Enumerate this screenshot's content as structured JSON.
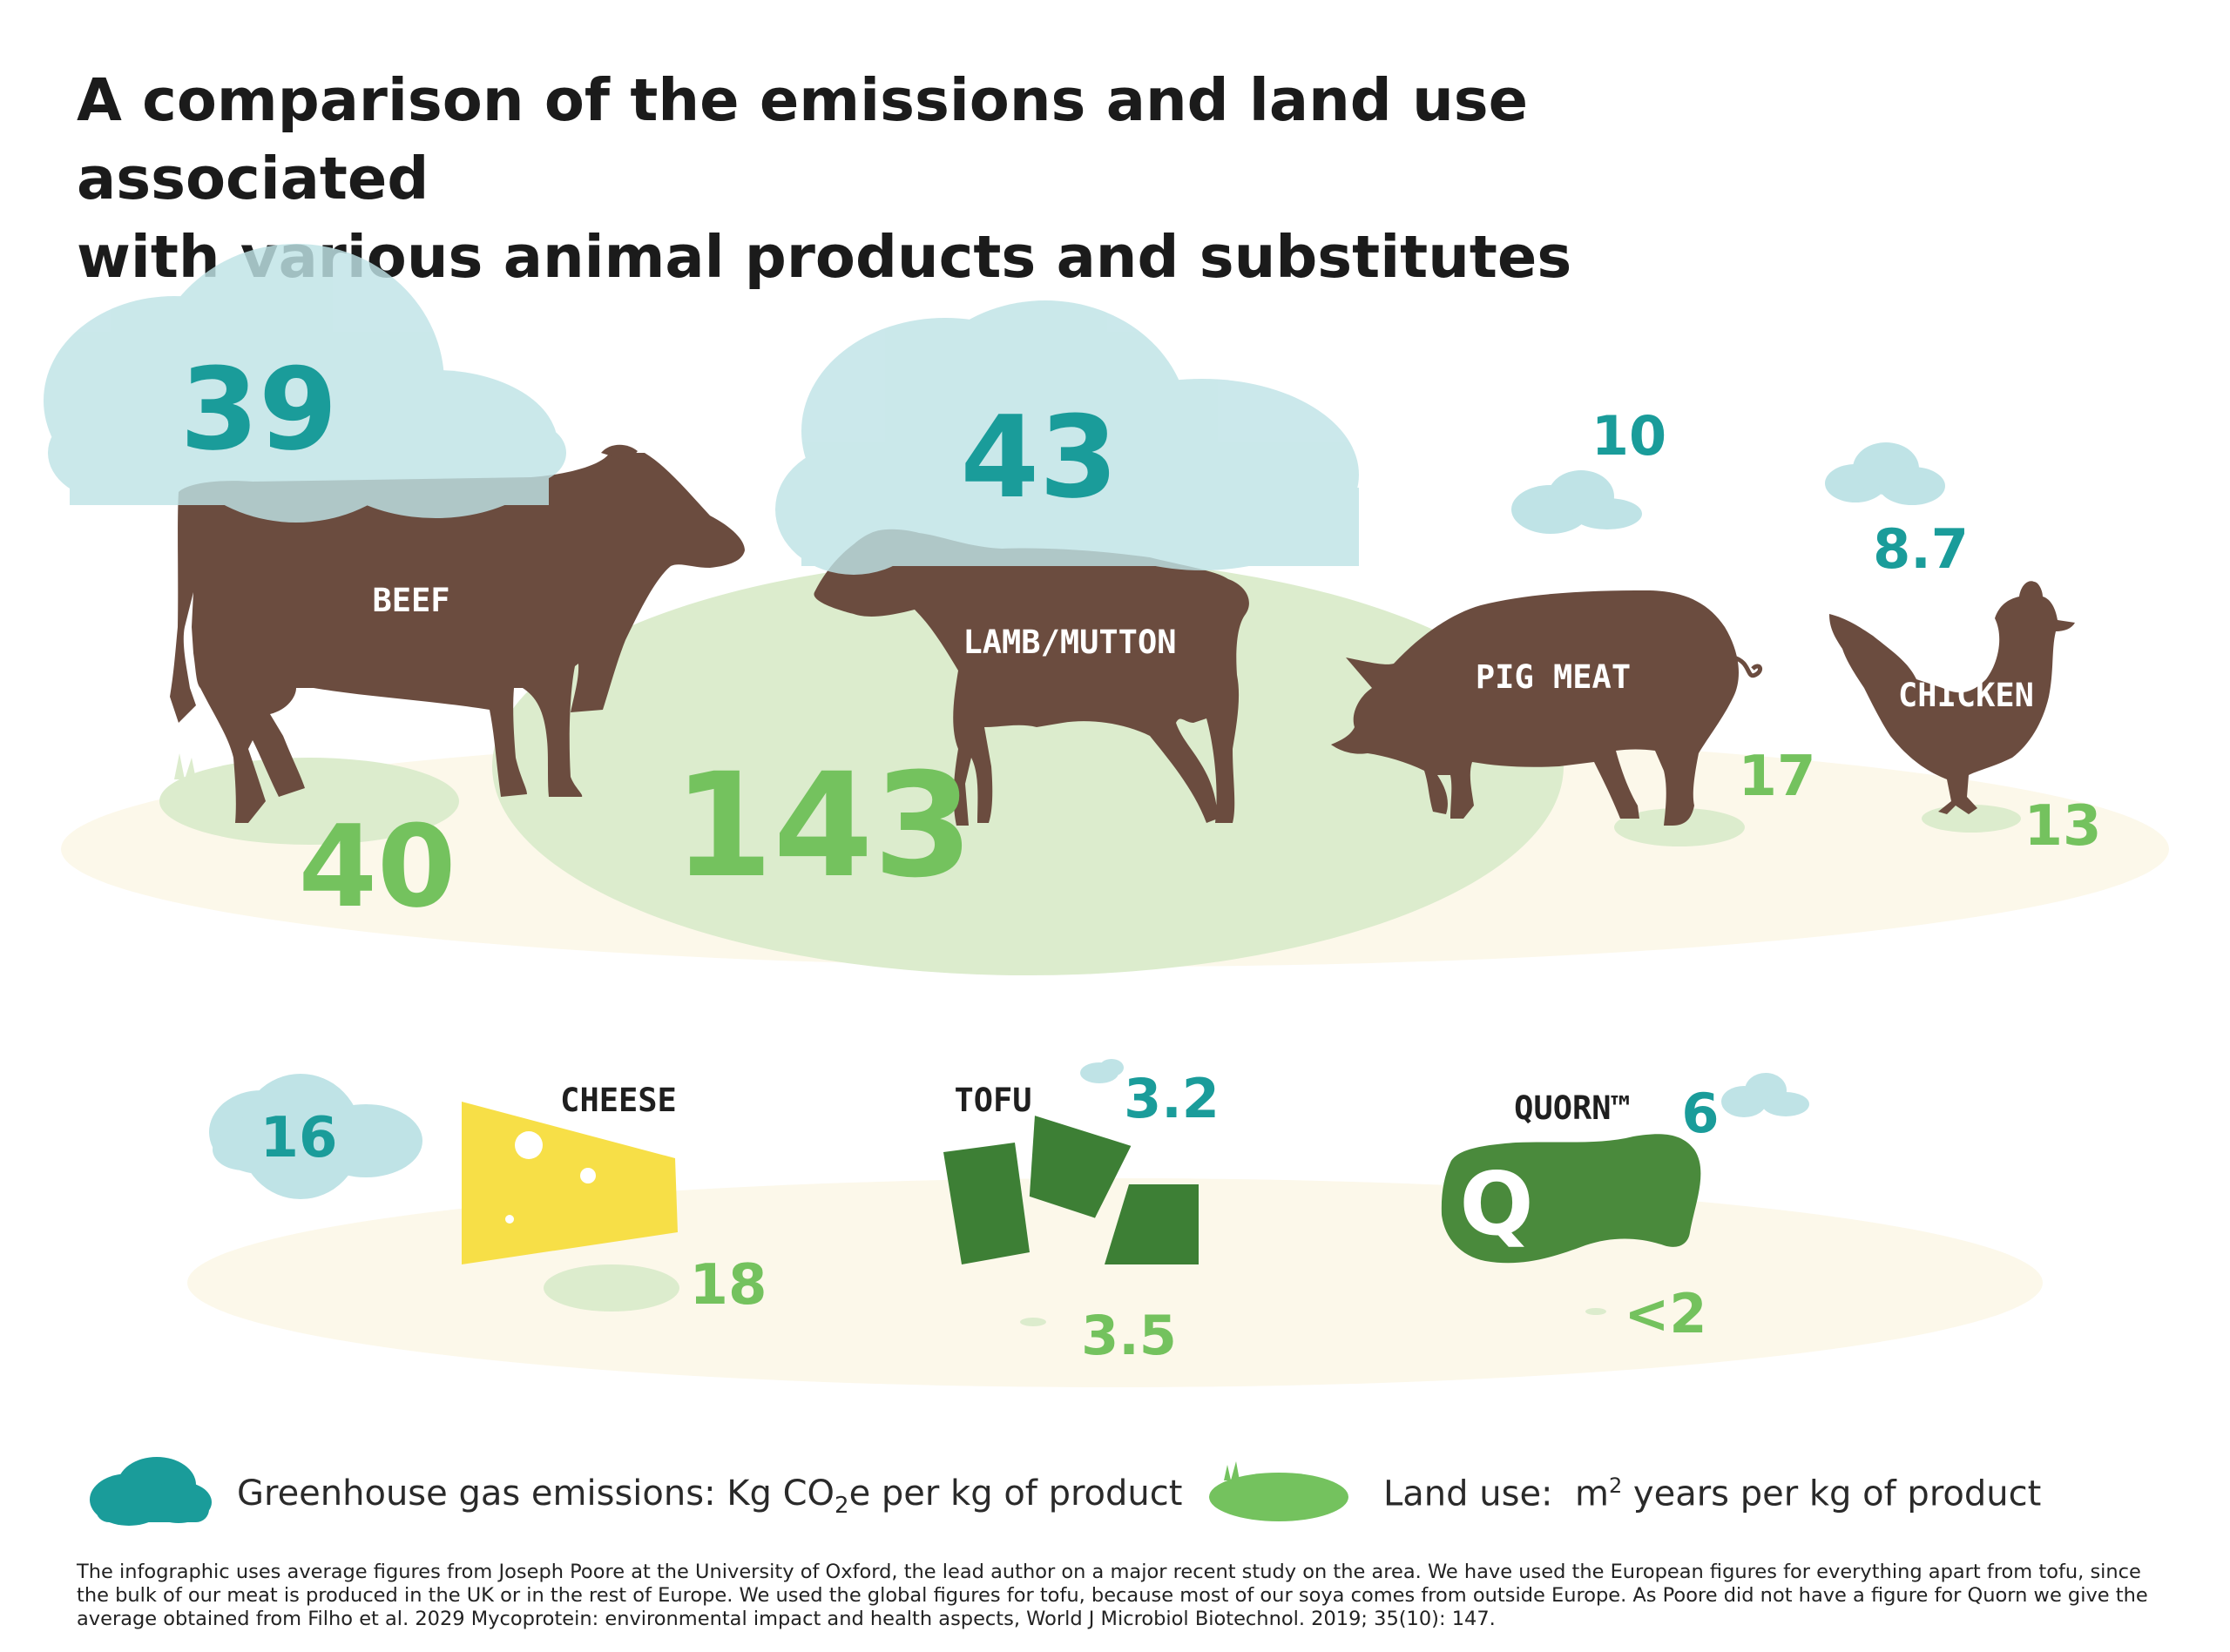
{
  "title": {
    "line1": "A comparison of the emissions and land use associated",
    "line2": "with various animal products and substitutes"
  },
  "products": [
    {
      "name": "BEEF",
      "emissions_label": "39",
      "land_use_label": "40",
      "emissions": 39,
      "land_use": 40
    },
    {
      "name": "LAMB/MUTTON",
      "emissions_label": "43",
      "land_use_label": "143",
      "emissions": 43,
      "land_use": 143
    },
    {
      "name": "PIG MEAT",
      "emissions_label": "10",
      "land_use_label": "17",
      "emissions": 10,
      "land_use": 17
    },
    {
      "name": "CHICKEN",
      "emissions_label": "8.7",
      "land_use_label": "13",
      "emissions": 8.7,
      "land_use": 13
    },
    {
      "name": "CHEESE",
      "emissions_label": "16",
      "land_use_label": "18",
      "emissions": 16,
      "land_use": 18
    },
    {
      "name": "TOFU",
      "emissions_label": "3.2",
      "land_use_label": "3.5",
      "emissions": 3.2,
      "land_use": 3.5
    },
    {
      "name": "QUORN™",
      "emissions_label": "6",
      "land_use_label": "<2",
      "emissions": 6,
      "land_use": 2
    }
  ],
  "quorn_logo_letter": "Q",
  "legend": {
    "emissions_prefix": "Greenhouse gas emissions: Kg CO",
    "emissions_sub": "2",
    "emissions_suffix": "e per kg of product",
    "land_prefix": "Land use:  m",
    "land_sup": "2",
    "land_suffix": " years per kg of product"
  },
  "footnote": "The infographic uses average figures from Joseph Poore at the University of Oxford, the lead author on a major recent study on the area. We have used the European figures for everything apart from tofu, since the bulk of our meat is produced in the UK or in the rest of Europe. We used the global figures for tofu, because most of our soya comes from outside Europe. As Poore did not have a figure for Quorn we give the average obtained from Filho et al. 2029 Mycoprotein: environmental impact and health aspects, World J Microbiol Biotechnol. 2019; 35(10): 147.",
  "colors": {
    "emissions_cloud": "#bfe3e6",
    "emissions_text": "#1a9c9a",
    "land_pasture": "#dceccd",
    "land_text": "#74c25e",
    "animal_brown": "#6b4c3f",
    "ground_cream": "#fcf8ea",
    "cheese_yellow": "#f7df47",
    "tofu_green": "#3d7f35",
    "quorn_green": "#4a8a3c"
  }
}
